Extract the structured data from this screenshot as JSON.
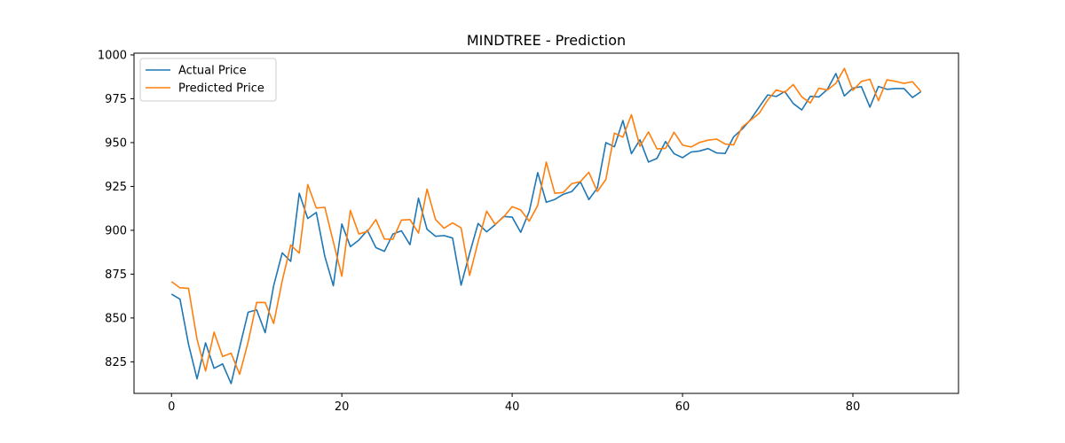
{
  "chart_data": {
    "type": "line",
    "title": "MINDTREE - Prediction",
    "xlabel": "",
    "ylabel": "",
    "xlim": [
      -4.4,
      92.4
    ],
    "ylim": [
      807,
      1001
    ],
    "xticks": [
      0,
      20,
      40,
      60,
      80
    ],
    "yticks": [
      825,
      850,
      875,
      900,
      925,
      950,
      975,
      1000
    ],
    "grid": false,
    "legend": "top-left",
    "series": [
      {
        "name": "Actual Price",
        "color": "#1f77b4",
        "x": [
          0,
          1,
          2,
          3,
          4,
          5,
          6,
          7,
          8,
          9,
          10,
          11,
          12,
          13,
          14,
          15,
          16,
          17,
          18,
          19,
          20,
          21,
          22,
          23,
          24,
          25,
          26,
          27,
          28,
          29,
          30,
          31,
          32,
          33,
          34,
          35,
          36,
          37,
          38,
          39,
          40,
          41,
          42,
          43,
          44,
          45,
          46,
          47,
          48,
          49,
          50,
          51,
          52,
          53,
          54,
          55,
          56,
          57,
          58,
          59,
          60,
          61,
          62,
          63,
          64,
          65,
          66,
          67,
          68,
          69,
          70,
          71,
          72,
          73,
          74,
          75,
          76,
          77,
          78,
          79,
          80,
          81,
          82,
          83,
          84,
          85,
          86,
          87,
          88
        ],
        "values": [
          863.6,
          860.7,
          835.0,
          815.3,
          835.8,
          821.3,
          823.8,
          812.6,
          833.2,
          853.3,
          854.6,
          841.6,
          868.5,
          887.1,
          882.3,
          921.1,
          906.7,
          910.2,
          885.2,
          868.4,
          903.6,
          890.7,
          894.4,
          900.0,
          890.1,
          888.0,
          897.9,
          899.7,
          891.8,
          918.3,
          900.6,
          896.6,
          897.0,
          895.6,
          868.7,
          886.8,
          903.9,
          899.1,
          903.2,
          907.9,
          907.5,
          898.8,
          910.7,
          932.9,
          916.0,
          917.6,
          920.5,
          922.1,
          927.7,
          917.5,
          924.1,
          950.0,
          947.6,
          962.6,
          943.7,
          951.6,
          938.9,
          941.0,
          950.6,
          943.7,
          941.4,
          944.6,
          945.2,
          946.6,
          944.1,
          943.8,
          953.3,
          957.7,
          963.2,
          970.3,
          977.2,
          976.3,
          979.1,
          972.3,
          968.6,
          976.4,
          976.0,
          980.3,
          989.4,
          976.6,
          981.1,
          981.9,
          970.2,
          982.0,
          980.4,
          980.8,
          980.8,
          975.7,
          979.1
        ]
      },
      {
        "name": "Predicted Price",
        "color": "#ff7f0e",
        "x": [
          0,
          1,
          2,
          3,
          4,
          5,
          6,
          7,
          8,
          9,
          10,
          11,
          12,
          13,
          14,
          15,
          16,
          17,
          18,
          19,
          20,
          21,
          22,
          23,
          24,
          25,
          26,
          27,
          28,
          29,
          30,
          31,
          32,
          33,
          34,
          35,
          36,
          37,
          38,
          39,
          40,
          41,
          42,
          43,
          44,
          45,
          46,
          47,
          48,
          49,
          50,
          51,
          52,
          53,
          54,
          55,
          56,
          57,
          58,
          59,
          60,
          61,
          62,
          63,
          64,
          65,
          66,
          67,
          68,
          69,
          70,
          71,
          72,
          73,
          74,
          75,
          76,
          77,
          78,
          79,
          80,
          81,
          82,
          83,
          84,
          85,
          86,
          87,
          88
        ],
        "values": [
          870.7,
          867.2,
          866.9,
          837.8,
          819.8,
          841.9,
          828.0,
          829.9,
          817.9,
          836.3,
          858.9,
          858.8,
          846.9,
          871.2,
          891.6,
          887.0,
          926.1,
          912.7,
          913.1,
          893.4,
          873.8,
          911.3,
          897.9,
          899.3,
          906.1,
          895.0,
          894.9,
          905.8,
          906.1,
          898.4,
          923.5,
          906.1,
          901.2,
          904.2,
          901.4,
          874.3,
          893.5,
          910.9,
          903.4,
          907.6,
          913.5,
          911.6,
          905.2,
          914.2,
          938.9,
          921.1,
          921.6,
          926.6,
          927.7,
          933.1,
          922.1,
          929.0,
          955.4,
          953.1,
          965.9,
          947.9,
          956.1,
          946.4,
          946.7,
          955.9,
          948.6,
          947.5,
          950.1,
          951.4,
          952.0,
          949.2,
          948.7,
          958.9,
          962.8,
          966.7,
          974.3,
          980.0,
          978.6,
          983.1,
          976.1,
          972.6,
          981.0,
          980.0,
          983.8,
          992.3,
          979.8,
          984.9,
          986.1,
          973.9,
          985.8,
          984.9,
          983.8,
          984.7,
          979.1
        ]
      }
    ]
  }
}
